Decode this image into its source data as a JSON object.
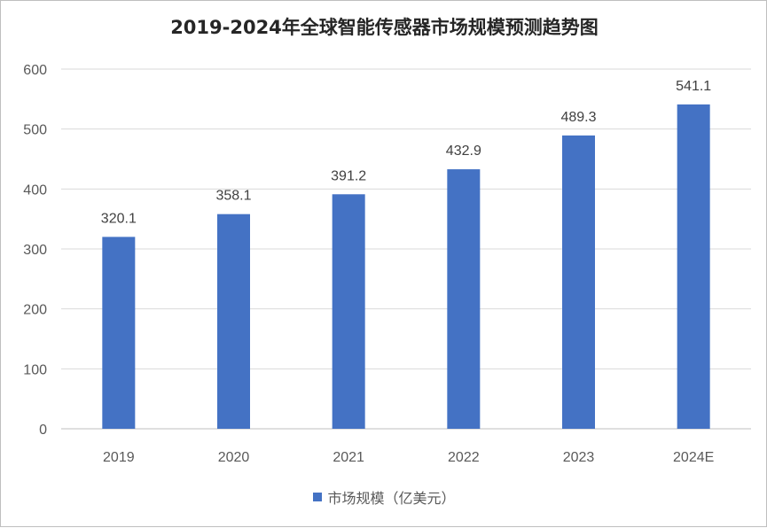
{
  "chart_data": {
    "type": "bar",
    "title": "2019-2024年全球智能传感器市场规模预测趋势图",
    "categories": [
      "2019",
      "2020",
      "2021",
      "2022",
      "2023",
      "2024E"
    ],
    "series": [
      {
        "name": "市场规模（亿美元）",
        "values": [
          320.1,
          358.1,
          391.2,
          432.9,
          489.3,
          541.1
        ]
      }
    ],
    "value_labels": [
      "320.1",
      "358.1",
      "391.2",
      "432.9",
      "489.3",
      "541.1"
    ],
    "ylim": [
      0,
      600
    ],
    "yticks": [
      "0",
      "100",
      "200",
      "300",
      "400",
      "500",
      "600"
    ],
    "grid": true,
    "legend_position": "bottom",
    "xlabel": "",
    "ylabel": "",
    "colors": {
      "bar": "#4472c4",
      "grid": "#d9d9d9",
      "axis": "#bfbfbf"
    }
  }
}
